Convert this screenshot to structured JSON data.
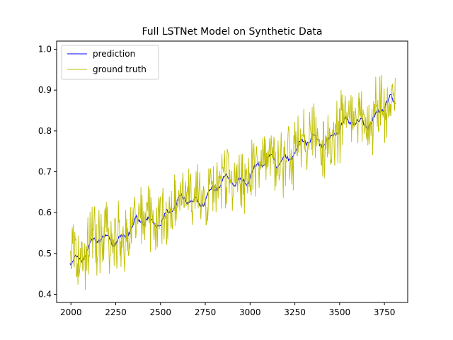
{
  "chart_data": {
    "type": "line",
    "title": "Full LSTNet Model on Synthetic Data",
    "xlabel": "",
    "ylabel": "",
    "xlim": [
      1920,
      3880
    ],
    "ylim": [
      0.38,
      1.02
    ],
    "x_ticks": [
      2000,
      2250,
      2500,
      2750,
      3000,
      3250,
      3500,
      3750
    ],
    "x_tick_labels": [
      "2000",
      "2250",
      "2500",
      "2750",
      "3000",
      "3250",
      "3500",
      "3750"
    ],
    "y_ticks": [
      0.4,
      0.5,
      0.6,
      0.7,
      0.8,
      0.9,
      1.0
    ],
    "y_tick_labels": [
      "0.4",
      "0.5",
      "0.6",
      "0.7",
      "0.8",
      "0.9",
      "1.0"
    ],
    "grid": false,
    "legend_position": "upper-left",
    "x_range": [
      1995,
      3810
    ],
    "series": [
      {
        "name": "prediction",
        "color": "#0000ff",
        "trend": {
          "start": [
            2000,
            0.49
          ],
          "end": [
            3810,
            0.865
          ]
        },
        "noise_amplitude": 0.012
      },
      {
        "name": "ground truth",
        "color": "#bfbf00",
        "trend": {
          "start": [
            2000,
            0.49
          ],
          "end": [
            3810,
            0.87
          ]
        },
        "noise_amplitude": 0.1
      }
    ]
  }
}
